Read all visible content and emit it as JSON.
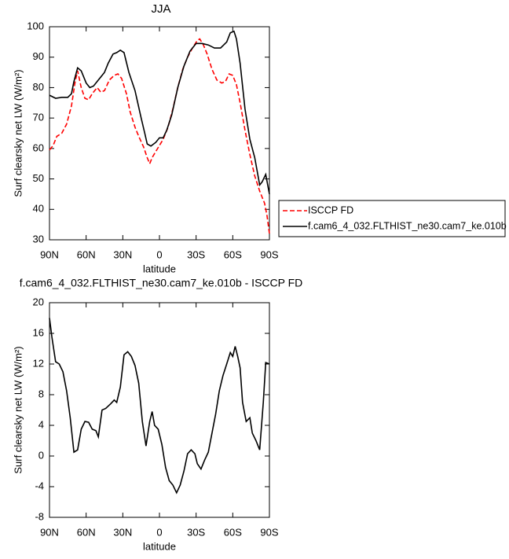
{
  "chart_data": [
    {
      "type": "line",
      "title": "JJA",
      "xlabel": "latitude",
      "ylabel": "Surf clearsky net LW (W/m²)",
      "xlim": [
        90,
        -90
      ],
      "xticks": [
        {
          "value": 90,
          "label": "90N"
        },
        {
          "value": 60,
          "label": "60N"
        },
        {
          "value": 30,
          "label": "30N"
        },
        0,
        {
          "value": -30,
          "label": "30S"
        },
        {
          "value": -60,
          "label": "60S"
        },
        {
          "value": -90,
          "label": "90S"
        }
      ],
      "ylim": [
        30,
        100
      ],
      "yticks": [
        30,
        40,
        50,
        60,
        70,
        80,
        90,
        100
      ],
      "series": [
        {
          "name": "ISCCP FD",
          "color": "#ff0000",
          "dash": true,
          "x": [
            90,
            87,
            84,
            80,
            76,
            72,
            69,
            67,
            64,
            61,
            58,
            55,
            51,
            48,
            45,
            41,
            37,
            34,
            31,
            27,
            24,
            20,
            17,
            13,
            10,
            8,
            6,
            3,
            0,
            -3,
            -7,
            -11,
            -15,
            -19,
            -23,
            -27,
            -31,
            -33,
            -36,
            -39,
            -43,
            -47,
            -51,
            -54,
            -57,
            -60,
            -63,
            -66,
            -70,
            -74,
            -78,
            -82,
            -86,
            -88,
            -90
          ],
          "values": [
            59.5,
            61,
            64,
            65,
            68,
            74,
            82,
            85.5,
            80,
            76.5,
            76,
            78,
            80,
            78.5,
            79,
            82.5,
            84,
            84.5,
            83,
            78,
            72,
            67,
            64,
            60.5,
            57,
            55,
            57,
            59,
            61,
            63,
            67,
            73,
            80,
            86,
            90,
            93,
            95.5,
            96,
            94,
            91,
            86,
            82.5,
            81.5,
            82,
            84.5,
            84,
            81,
            75,
            66,
            58,
            51,
            46,
            42,
            38,
            32
          ]
        },
        {
          "name": "f.cam6_4_032.FLTHIST_ne30.cam7_ke.010b",
          "color": "#000000",
          "dash": false,
          "x": [
            90,
            85,
            80,
            75,
            72,
            70,
            67,
            64,
            60,
            57,
            54,
            50,
            45,
            42,
            38,
            35,
            32,
            29,
            25,
            20,
            15,
            12,
            10,
            7,
            3,
            0,
            -3,
            -6,
            -10,
            -15,
            -20,
            -25,
            -30,
            -35,
            -40,
            -45,
            -50,
            -55,
            -58,
            -61,
            -63,
            -66,
            -70,
            -74,
            -78,
            -82,
            -84,
            -87,
            -90
          ],
          "values": [
            77.5,
            76.5,
            76.8,
            76.8,
            78,
            82,
            86.5,
            85.5,
            81.5,
            80,
            80.5,
            82.5,
            85,
            88,
            91,
            91.5,
            92.3,
            91.5,
            85,
            79,
            70,
            65,
            61.5,
            60.8,
            62,
            63.5,
            63.5,
            66,
            71,
            80,
            87,
            92,
            94.5,
            94.5,
            94,
            93,
            93,
            95,
            98,
            98.5,
            96,
            88,
            73,
            63,
            57,
            48,
            49,
            51.5,
            45
          ]
        }
      ]
    },
    {
      "type": "line",
      "title": "f.cam6_4_032.FLTHIST_ne30.cam7_ke.010b - ISCCP FD",
      "xlabel": "latitude",
      "ylabel": "Surf clearsky net LW (W/m²)",
      "xlim": [
        90,
        -90
      ],
      "xticks": [
        {
          "value": 90,
          "label": "90N"
        },
        {
          "value": 60,
          "label": "60N"
        },
        {
          "value": 30,
          "label": "30N"
        },
        0,
        {
          "value": -30,
          "label": "30S"
        },
        {
          "value": -60,
          "label": "60S"
        },
        {
          "value": -90,
          "label": "90S"
        }
      ],
      "ylim": [
        -8,
        20
      ],
      "yticks": [
        -8,
        -4,
        0,
        4,
        8,
        12,
        16,
        20
      ],
      "series": [
        {
          "color": "#000000",
          "dash": false,
          "x": [
            90,
            88,
            85,
            82,
            79,
            76,
            73,
            70,
            67,
            64,
            61,
            58,
            55,
            52,
            50,
            47,
            44,
            40,
            37,
            35,
            32,
            29,
            26,
            23,
            20,
            17,
            14,
            11,
            8,
            6,
            4,
            1,
            -2,
            -5,
            -8,
            -11,
            -14,
            -17,
            -20,
            -23,
            -26,
            -29,
            -31,
            -34,
            -37,
            -40,
            -43,
            -46,
            -49,
            -52,
            -55,
            -58,
            -60,
            -62,
            -64,
            -66,
            -68,
            -71,
            -74,
            -76,
            -79,
            -82,
            -85,
            -87,
            -90
          ],
          "values": [
            18,
            15.5,
            12.3,
            12,
            11,
            8.5,
            5,
            0.5,
            0.8,
            3.5,
            4.5,
            4.4,
            3.5,
            3.3,
            2.5,
            6,
            6.2,
            6.8,
            7.3,
            7,
            9,
            13.2,
            13.6,
            13,
            11.8,
            9.5,
            4.5,
            1.3,
            4.5,
            5.8,
            4,
            3.5,
            1.5,
            -1.5,
            -3.2,
            -3.8,
            -4.8,
            -3.8,
            -2,
            0.3,
            0.8,
            0.3,
            -1,
            -1.7,
            -0.5,
            0.5,
            3,
            5.5,
            8.5,
            10.5,
            12,
            13.5,
            13,
            14.3,
            13,
            11.5,
            7,
            4.5,
            5,
            3,
            2,
            0.8,
            7,
            12.2,
            12
          ]
        }
      ]
    }
  ]
}
